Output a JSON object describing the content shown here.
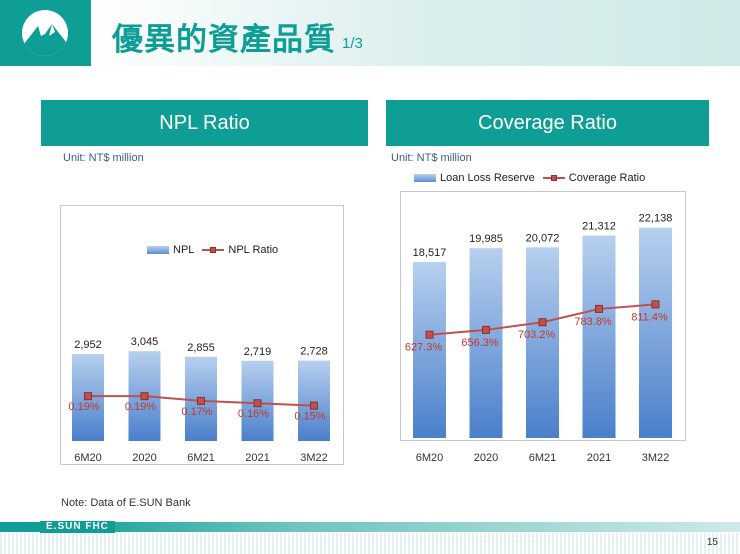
{
  "header": {
    "title": "優異的資產品質",
    "subtitle": "1/3"
  },
  "colors": {
    "accent": "#0f9e96",
    "bar_top": "#b7d0ee",
    "bar_bottom": "#4a7fcb",
    "line": "#c0504d",
    "label_red": "#c0392b"
  },
  "panels": {
    "left": {
      "title": "NPL Ratio",
      "unit": "Unit: NT$ million"
    },
    "right": {
      "title": "Coverage Ratio",
      "unit": "Unit: NT$ million"
    }
  },
  "chart_data": [
    {
      "type": "bar",
      "title": "NPL Ratio",
      "categories": [
        "6M20",
        "2020",
        "6M21",
        "2021",
        "3M22"
      ],
      "series": [
        {
          "name": "NPL",
          "kind": "bar",
          "values": [
            2952,
            3045,
            2855,
            2719,
            2728
          ],
          "labels": [
            "2,952",
            "3,045",
            "2,855",
            "2,719",
            "2,728"
          ]
        },
        {
          "name": "NPL Ratio",
          "kind": "line",
          "values": [
            0.19,
            0.19,
            0.17,
            0.16,
            0.15
          ],
          "labels": [
            "0.19%",
            "0.19%",
            "0.17%",
            "0.16%",
            "0.15%"
          ]
        }
      ],
      "legend": [
        "NPL",
        "NPL Ratio"
      ],
      "bar_ylim": [
        0,
        8000
      ],
      "line_ylim": [
        0,
        1.0
      ]
    },
    {
      "type": "bar",
      "title": "Coverage Ratio",
      "categories": [
        "6M20",
        "2020",
        "6M21",
        "2021",
        "3M22"
      ],
      "series": [
        {
          "name": "Loan Loss Reserve",
          "kind": "bar",
          "values": [
            18517,
            19985,
            20072,
            21312,
            22138
          ],
          "labels": [
            "18,517",
            "19,985",
            "20,072",
            "21,312",
            "22,138"
          ]
        },
        {
          "name": "Coverage Ratio",
          "kind": "line",
          "values": [
            627.3,
            656.3,
            703.2,
            783.8,
            811.4
          ],
          "labels": [
            "627.3%",
            "656.3%",
            "703.2%",
            "783.8%",
            "811.4%"
          ]
        }
      ],
      "legend": [
        "Loan Loss Reserve",
        "Coverage Ratio"
      ],
      "bar_ylim": [
        0,
        26000
      ],
      "line_ylim": [
        0,
        1500
      ]
    }
  ],
  "note": "Note: Data of E.SUN Bank",
  "footer": {
    "brand": "E.SUN FHC",
    "page": "15"
  }
}
